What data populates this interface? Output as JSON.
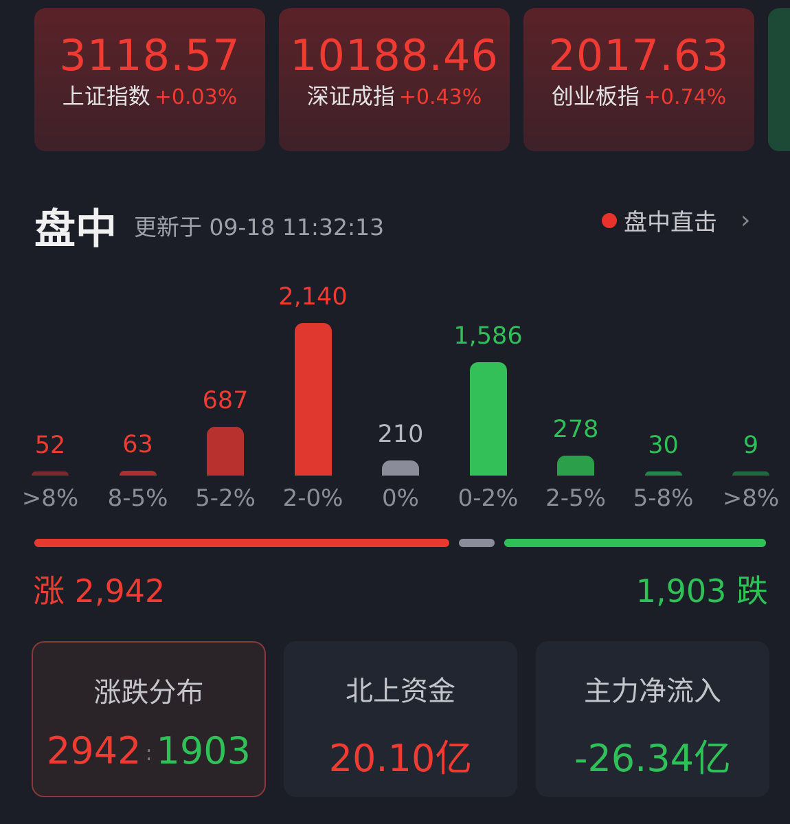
{
  "indices": [
    {
      "value": "3118.57",
      "name": "上证指数",
      "change": "+0.03%"
    },
    {
      "value": "10188.46",
      "name": "深证成指",
      "change": "+0.43%"
    },
    {
      "value": "2017.63",
      "name": "创业板指",
      "change": "+0.74%"
    }
  ],
  "header": {
    "title": "盘中",
    "updated": "更新于 09-18 11:32:13",
    "live_label": "盘中直击",
    "live_icon": "red-dot-icon",
    "chevron": "›"
  },
  "chart_data": {
    "type": "bar",
    "categories": [
      ">8%",
      "8-5%",
      "5-2%",
      "2-0%",
      "0%",
      "0-2%",
      "2-5%",
      "5-8%",
      ">8%"
    ],
    "values": [
      52,
      63,
      687,
      2140,
      210,
      1586,
      278,
      30,
      9
    ],
    "labels": [
      "52",
      "63",
      "687",
      "2,140",
      "210",
      "1,586",
      "278",
      "30",
      "9"
    ],
    "colors": [
      "#7a2a2d",
      "#a8302f",
      "#b8312f",
      "#e0372f",
      "#8a8d99",
      "#33c058",
      "#2b9f4a",
      "#25864a",
      "#1f6b40"
    ],
    "label_colors": [
      "#ef3b32",
      "#ef3b32",
      "#ef3b32",
      "#ef3b32",
      "#b8b9c0",
      "#2fc158",
      "#2fc158",
      "#2fc158",
      "#2fc158"
    ]
  },
  "summary": {
    "up_label": "涨 2,942",
    "down_label": "1,903 跌",
    "up": 2942,
    "flat": 210,
    "down": 1903,
    "colors": {
      "up": "#e8392f",
      "flat": "#8a8d99",
      "down": "#2fc158"
    }
  },
  "bottom": [
    {
      "title": "涨跌分布",
      "up": "2942",
      "sep": ":",
      "down": "1903"
    },
    {
      "title": "北上资金",
      "value": "20.10亿"
    },
    {
      "title": "主力净流入",
      "value": "-26.34亿"
    }
  ]
}
